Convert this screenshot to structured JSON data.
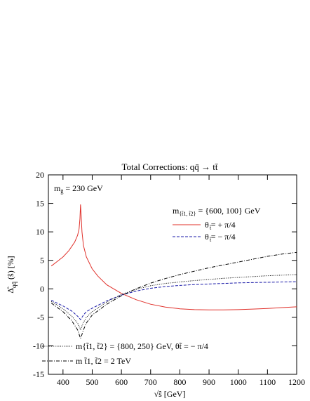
{
  "chart_data": {
    "type": "line",
    "title": "Total Corrections:  qq̄ → tt̄",
    "xlabel": "√ŝ  [GeV]",
    "ylabel": "Δ̂",
    "ylabel_sub": "qq̄",
    "ylabel_arg": "(ŝ)   [%]",
    "xlim": [
      350,
      1200
    ],
    "ylim": [
      -15,
      20
    ],
    "x_ticks": [
      400,
      500,
      600,
      700,
      800,
      900,
      1000,
      1100,
      1200
    ],
    "y_ticks": [
      -15,
      -10,
      -5,
      0,
      5,
      10,
      15,
      20
    ],
    "grid": false,
    "annotation_mass": "m",
    "annotation_mass_sub": "g̃",
    "annotation_mass_value": "= 230 GeV",
    "legend_top": {
      "header": "m",
      "header_sub": "{t̃1, t̃2}",
      "header_value": "= {600, 100} GeV",
      "entries": [
        "θ  = + π/4",
        "θ  = − π/4"
      ],
      "entry_sub": "t̃"
    },
    "legend_bottom": {
      "entries": [
        "m{t̃1, t̃2} = {800, 250} GeV,   θt̃ = − π/4",
        "m t̃1, t̃2 = 2 TeV"
      ]
    },
    "series": [
      {
        "color": "#e0302a",
        "style": "solid",
        "x": [
          360,
          380,
          400,
          420,
          440,
          450,
          455,
          458,
          460,
          462,
          465,
          470,
          480,
          500,
          520,
          550,
          600,
          650,
          700,
          750,
          800,
          850,
          900,
          950,
          1000,
          1050,
          1100,
          1150,
          1200
        ],
        "y": [
          4.0,
          4.8,
          5.6,
          6.7,
          8.2,
          9.4,
          10.5,
          12.3,
          14.8,
          13.0,
          10.0,
          7.6,
          5.6,
          3.5,
          2.2,
          0.7,
          -0.8,
          -1.9,
          -2.7,
          -3.2,
          -3.5,
          -3.65,
          -3.7,
          -3.7,
          -3.65,
          -3.55,
          -3.45,
          -3.3,
          -3.15
        ]
      },
      {
        "color": "#1a1aa8",
        "style": "dashed",
        "x": [
          360,
          400,
          430,
          450,
          460,
          465,
          470,
          480,
          500,
          550,
          600,
          650,
          700,
          750,
          800,
          850,
          900,
          950,
          1000,
          1050,
          1100,
          1150,
          1200
        ],
        "y": [
          -2.0,
          -3.0,
          -3.9,
          -4.8,
          -5.4,
          -5.0,
          -4.6,
          -4.0,
          -3.4,
          -2.1,
          -1.1,
          -0.4,
          0.1,
          0.4,
          0.6,
          0.75,
          0.85,
          0.95,
          1.05,
          1.1,
          1.15,
          1.2,
          1.25
        ]
      },
      {
        "color": "#000000",
        "style": "dotted",
        "x": [
          360,
          400,
          430,
          450,
          460,
          465,
          470,
          480,
          500,
          550,
          600,
          650,
          700,
          750,
          800,
          850,
          900,
          950,
          1000,
          1050,
          1100,
          1150,
          1200
        ],
        "y": [
          -2.2,
          -3.5,
          -4.8,
          -6.0,
          -7.2,
          -6.5,
          -5.9,
          -5.0,
          -4.0,
          -2.3,
          -1.0,
          -0.1,
          0.55,
          0.95,
          1.2,
          1.45,
          1.65,
          1.85,
          2.0,
          2.15,
          2.3,
          2.4,
          2.5
        ]
      },
      {
        "color": "#000000",
        "style": "dashdot",
        "x": [
          360,
          400,
          430,
          450,
          460,
          465,
          470,
          480,
          500,
          550,
          600,
          650,
          700,
          750,
          800,
          850,
          900,
          950,
          1000,
          1050,
          1100,
          1150,
          1200
        ],
        "y": [
          -2.5,
          -4.0,
          -5.6,
          -7.2,
          -8.7,
          -8.0,
          -7.2,
          -6.0,
          -4.6,
          -2.7,
          -1.2,
          0.0,
          1.0,
          1.8,
          2.5,
          3.1,
          3.7,
          4.2,
          4.7,
          5.2,
          5.7,
          6.1,
          6.4
        ]
      }
    ]
  }
}
